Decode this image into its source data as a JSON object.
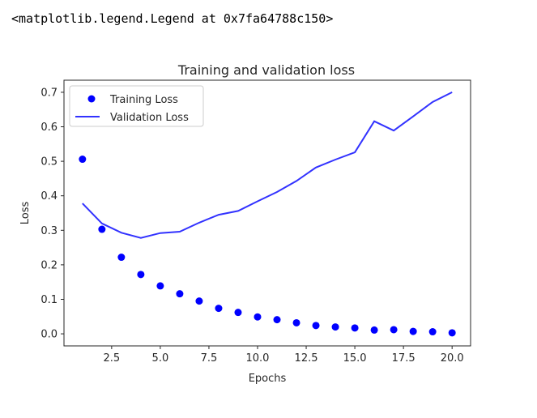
{
  "output": {
    "repr_text": "<matplotlib.legend.Legend at 0x7fa64788c150>"
  },
  "colors": {
    "training": "#0000ff",
    "validation": "#3232ff",
    "axes": "#262626"
  },
  "chart_data": {
    "type": "line",
    "title": "Training and validation loss",
    "xlabel": "Epochs",
    "ylabel": "Loss",
    "xlim": [
      0.05,
      20.95
    ],
    "ylim": [
      -0.035,
      0.735
    ],
    "xticks": [
      2.5,
      5.0,
      7.5,
      10.0,
      12.5,
      15.0,
      17.5,
      20.0
    ],
    "xtick_labels": [
      "2.5",
      "5.0",
      "7.5",
      "10.0",
      "12.5",
      "15.0",
      "17.5",
      "20.0"
    ],
    "yticks": [
      0.0,
      0.1,
      0.2,
      0.3,
      0.4,
      0.5,
      0.6,
      0.7
    ],
    "ytick_labels": [
      "0.0",
      "0.1",
      "0.2",
      "0.3",
      "0.4",
      "0.5",
      "0.6",
      "0.7"
    ],
    "grid": false,
    "legend_position": "top-left",
    "x": [
      1,
      2,
      3,
      4,
      5,
      6,
      7,
      8,
      9,
      10,
      11,
      12,
      13,
      14,
      15,
      16,
      17,
      18,
      19,
      20
    ],
    "series": [
      {
        "name": "Training Loss",
        "style": "markers",
        "values": [
          0.506,
          0.303,
          0.222,
          0.172,
          0.139,
          0.116,
          0.095,
          0.074,
          0.062,
          0.049,
          0.041,
          0.032,
          0.024,
          0.02,
          0.017,
          0.011,
          0.012,
          0.007,
          0.006,
          0.003
        ]
      },
      {
        "name": "Validation Loss",
        "style": "line",
        "values": [
          0.378,
          0.32,
          0.293,
          0.278,
          0.292,
          0.296,
          0.322,
          0.345,
          0.356,
          0.384,
          0.411,
          0.443,
          0.482,
          0.505,
          0.526,
          0.616,
          0.589,
          0.63,
          0.672,
          0.7
        ]
      }
    ]
  }
}
